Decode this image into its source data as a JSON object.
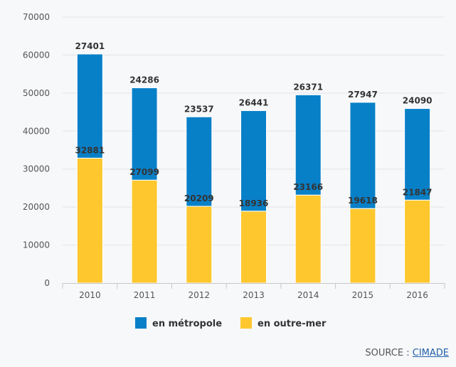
{
  "chart_data": {
    "type": "bar",
    "stacked": true,
    "categories": [
      "2010",
      "2011",
      "2012",
      "2013",
      "2014",
      "2015",
      "2016"
    ],
    "series": [
      {
        "name": "en outre-mer",
        "color": "#fec72e",
        "values": [
          32881,
          27099,
          20209,
          18936,
          23166,
          19618,
          21847
        ]
      },
      {
        "name": "en métropole",
        "color": "#0880c8",
        "values": [
          27401,
          24286,
          23537,
          26441,
          26371,
          27947,
          24090
        ]
      }
    ],
    "ylim": [
      0,
      70000
    ],
    "yticks": [
      "0",
      "10000",
      "20000",
      "30000",
      "40000",
      "50000",
      "60000",
      "70000"
    ],
    "grid": true,
    "legend": "bottom"
  },
  "legend": [
    {
      "label": "en métropole",
      "color": "#0880c8"
    },
    {
      "label": "en outre-mer",
      "color": "#fec72e"
    }
  ],
  "source": {
    "prefix": "SOURCE :",
    "link": "CIMADE"
  }
}
